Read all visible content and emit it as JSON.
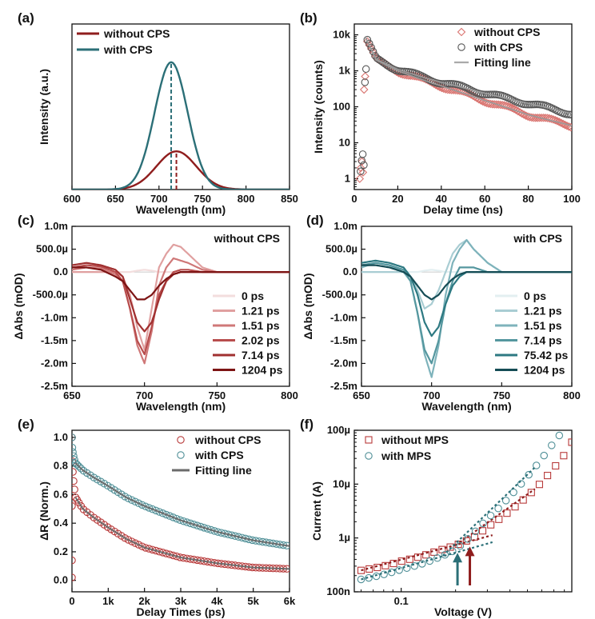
{
  "colors": {
    "red": "#8f1d1d",
    "teal": "#2b6f77",
    "fit": "#6b6b6b",
    "pinkMarker": "#d9736f",
    "tealMarker": "#4f8f97"
  },
  "chart_data": [
    {
      "panel": "(a)",
      "type": "line",
      "xlabel": "Wavelength (nm)",
      "ylabel": "Intensity (a.u.)",
      "xlim": [
        600,
        850
      ],
      "ylim": [
        0,
        1.3
      ],
      "xticks": [
        600,
        650,
        700,
        750,
        800,
        850
      ],
      "yticks": [],
      "legend_position": "top-left",
      "series": [
        {
          "name": "without CPS",
          "color": "#8f1d1d",
          "peak_x": 720,
          "peak_y": 0.3,
          "sigma": 23
        },
        {
          "name": "with CPS",
          "color": "#2b6f77",
          "peak_x": 714,
          "peak_y": 1.0,
          "sigma": 19
        }
      ],
      "annotations": [
        {
          "type": "dashed-vline",
          "x": 714,
          "color": "#2b6f77"
        },
        {
          "type": "dashed-vline",
          "x": 720,
          "color": "#8f1d1d"
        }
      ]
    },
    {
      "panel": "(b)",
      "type": "scatter",
      "xlabel": "Delay time (ns)",
      "ylabel": "Intensity (counts)",
      "xlim": [
        0,
        100
      ],
      "ylim": [
        0.5,
        20000
      ],
      "yscale": "log",
      "xticks": [
        0,
        20,
        40,
        60,
        80,
        100
      ],
      "yticks": [
        {
          "v": 1,
          "label": "1"
        },
        {
          "v": 10,
          "label": "10"
        },
        {
          "v": 100,
          "label": "100"
        },
        {
          "v": 1000,
          "label": "1k"
        },
        {
          "v": 10000,
          "label": "10k"
        }
      ],
      "legend_position": "top-right",
      "series": [
        {
          "name": "without CPS",
          "marker": "diamond",
          "color": "#d9736f",
          "x": [
            5,
            10,
            20,
            30,
            40,
            50,
            60,
            70,
            80,
            90,
            100
          ],
          "y": [
            9000,
            2000,
            1000,
            600,
            380,
            240,
            150,
            95,
            60,
            42,
            30
          ]
        },
        {
          "name": "with CPS",
          "marker": "circle",
          "color": "#555555",
          "x": [
            5,
            10,
            20,
            30,
            40,
            50,
            60,
            70,
            80,
            90,
            100
          ],
          "y": [
            9000,
            2100,
            1100,
            700,
            480,
            340,
            240,
            170,
            125,
            90,
            65
          ]
        },
        {
          "name": "Fitting line",
          "marker": "line",
          "color": "#aaaaaa"
        }
      ]
    },
    {
      "panel": "(c)",
      "type": "line",
      "note_label": "without CPS",
      "xlabel": "Wavelength (nm)",
      "ylabel": "ΔAbs (mOD)",
      "xlim": [
        650,
        800
      ],
      "ylim": [
        -0.0025,
        0.001
      ],
      "xticks": [
        650,
        700,
        750,
        800
      ],
      "yticks": [
        {
          "v": 0.001,
          "label": "1.0m"
        },
        {
          "v": 0.0005,
          "label": "500.0µ"
        },
        {
          "v": 0,
          "label": "0.0"
        },
        {
          "v": -0.0005,
          "label": "-500.0µ"
        },
        {
          "v": -0.001,
          "label": "-1.0m"
        },
        {
          "v": -0.0015,
          "label": "-1.5m"
        },
        {
          "v": -0.002,
          "label": "-2.0m"
        },
        {
          "v": -0.0025,
          "label": "-2.5m"
        }
      ],
      "legend_position": "bottom-right",
      "x": [
        650,
        660,
        670,
        680,
        685,
        690,
        695,
        700,
        705,
        710,
        715,
        720,
        725,
        730,
        740,
        750,
        770,
        800
      ],
      "series": [
        {
          "name": "0 ps",
          "color": "#f3dede",
          "y": [
            0,
            0,
            0,
            0,
            0,
            0,
            3e-05,
            5e-05,
            3e-05,
            0,
            0,
            0,
            0,
            0,
            0,
            0,
            0,
            0
          ]
        },
        {
          "name": "1.21 ps",
          "color": "#e0a0a0",
          "y": [
            0,
            0,
            0,
            0,
            -0.0001,
            -0.0005,
            -0.0012,
            -0.0017,
            -0.0008,
            0.0001,
            0.0004,
            0.0006,
            0.00055,
            0.0004,
            0.0001,
            0,
            0,
            0
          ]
        },
        {
          "name": "1.51 ps",
          "color": "#cf7878",
          "y": [
            5e-05,
            0.0001,
            8e-05,
            -5e-05,
            -0.0002,
            -0.0008,
            -0.0016,
            -0.002,
            -0.0013,
            -0.0003,
            0.0001,
            0.0003,
            0.00025,
            0.0002,
            5e-05,
            0,
            0,
            0
          ]
        },
        {
          "name": "2.02 ps",
          "color": "#b84d4d",
          "y": [
            0.0001,
            0.00015,
            0.00012,
            0,
            -0.0002,
            -0.0008,
            -0.0015,
            -0.0018,
            -0.0012,
            -0.0005,
            -0.0002,
            0,
            5e-05,
            5e-05,
            0,
            0,
            0,
            0
          ]
        },
        {
          "name": "7.14 ps",
          "color": "#a03030",
          "y": [
            0.00015,
            0.0002,
            0.00015,
            5e-05,
            -0.0001,
            -0.0006,
            -0.0011,
            -0.0013,
            -0.0011,
            -0.0006,
            -0.0002,
            -5e-05,
            0,
            0,
            0,
            0,
            0,
            0
          ]
        },
        {
          "name": "1204 ps",
          "color": "#7d1414",
          "y": [
            0.0001,
            0.0001,
            5e-05,
            -0.0001,
            -0.0002,
            -0.0004,
            -0.0006,
            -0.0006,
            -0.0005,
            -0.0003,
            -0.00015,
            -5e-05,
            0,
            0,
            0,
            0,
            0,
            0
          ]
        }
      ]
    },
    {
      "panel": "(d)",
      "type": "line",
      "note_label": "with CPS",
      "xlabel": "Wavelength (nm)",
      "ylabel": "ΔAbs (mOD)",
      "xlim": [
        650,
        800
      ],
      "ylim": [
        -0.0025,
        0.001
      ],
      "xticks": [
        650,
        700,
        750,
        800
      ],
      "yticks": [
        {
          "v": 0.001,
          "label": "1.0m"
        },
        {
          "v": 0.0005,
          "label": "500.0µ"
        },
        {
          "v": 0,
          "label": "0.0"
        },
        {
          "v": -0.0005,
          "label": "-500.0µ"
        },
        {
          "v": -0.001,
          "label": "-1.0m"
        },
        {
          "v": -0.0015,
          "label": "-1.5m"
        },
        {
          "v": -0.002,
          "label": "-2.0m"
        },
        {
          "v": -0.0025,
          "label": "-2.5m"
        }
      ],
      "legend_position": "bottom-right",
      "x": [
        650,
        660,
        670,
        680,
        685,
        690,
        695,
        700,
        705,
        710,
        715,
        720,
        725,
        730,
        740,
        750,
        770,
        800
      ],
      "series": [
        {
          "name": "0 ps",
          "color": "#e3eff1",
          "y": [
            0,
            0,
            0,
            0,
            0,
            0,
            3e-05,
            5e-05,
            3e-05,
            0,
            0,
            0,
            0,
            0,
            0,
            0,
            0,
            0
          ]
        },
        {
          "name": "1.21 ps",
          "color": "#a9cdd3",
          "y": [
            0,
            0,
            0,
            0,
            -0.0001,
            -0.0004,
            -0.0008,
            -0.0007,
            -0.0004,
            0,
            0.0004,
            0.0006,
            0.0007,
            0.0005,
            0.0002,
            0,
            0,
            0
          ]
        },
        {
          "name": "1.51 ps",
          "color": "#7eb3bb",
          "y": [
            0.0001,
            0.0002,
            0.00015,
            0,
            -0.0002,
            -0.0009,
            -0.0018,
            -0.0023,
            -0.0016,
            -0.0005,
            0.0002,
            0.0005,
            0.0007,
            0.0005,
            0.0002,
            0,
            0,
            0
          ]
        },
        {
          "name": "7.14 ps",
          "color": "#55979f",
          "y": [
            0.00015,
            0.0002,
            0.00015,
            5e-05,
            -0.0002,
            -0.0009,
            -0.0017,
            -0.002,
            -0.0015,
            -0.0007,
            -0.0002,
            0.0001,
            0.0001,
            0.0001,
            0,
            0,
            0,
            0
          ]
        },
        {
          "name": "75.42 ps",
          "color": "#2d7982",
          "y": [
            0.0002,
            0.00025,
            0.0002,
            0.0001,
            -0.0001,
            -0.0005,
            -0.0011,
            -0.0014,
            -0.0012,
            -0.0007,
            -0.0003,
            -0.0001,
            0,
            0,
            0,
            0,
            0,
            0
          ]
        },
        {
          "name": "1204 ps",
          "color": "#154c55",
          "y": [
            0.00015,
            0.00015,
            0.0001,
            0,
            -0.0001,
            -0.0003,
            -0.0005,
            -0.0006,
            -0.0005,
            -0.0003,
            -0.00015,
            -5e-05,
            0,
            0,
            0,
            0,
            0,
            0
          ]
        }
      ]
    },
    {
      "panel": "(e)",
      "type": "scatter",
      "xlabel": "Delay Times (ps)",
      "ylabel": "ΔR (Norm.)",
      "xlim": [
        0,
        6000
      ],
      "ylim": [
        -0.08,
        1.05
      ],
      "xticks": [
        {
          "v": 0,
          "label": "0"
        },
        {
          "v": 1000,
          "label": "1k"
        },
        {
          "v": 2000,
          "label": "2k"
        },
        {
          "v": 3000,
          "label": "3k"
        },
        {
          "v": 4000,
          "label": "4k"
        },
        {
          "v": 5000,
          "label": "5k"
        },
        {
          "v": 6000,
          "label": "6k"
        }
      ],
      "yticks": [
        {
          "v": 0,
          "label": "0.0"
        },
        {
          "v": 0.2,
          "label": "0.2"
        },
        {
          "v": 0.4,
          "label": "0.4"
        },
        {
          "v": 0.6,
          "label": "0.6"
        },
        {
          "v": 0.8,
          "label": "0.8"
        },
        {
          "v": 1.0,
          "label": "1.0"
        }
      ],
      "legend_position": "top-right",
      "series": [
        {
          "name": "without CPS",
          "marker": "circle",
          "color": "#b83a3a",
          "x": [
            0,
            100,
            300,
            600,
            1000,
            1500,
            2000,
            3000,
            4000,
            5000,
            6000
          ],
          "y": [
            1.0,
            0.58,
            0.5,
            0.44,
            0.37,
            0.29,
            0.23,
            0.16,
            0.12,
            0.09,
            0.08
          ]
        },
        {
          "name": "with CPS",
          "marker": "circle",
          "color": "#4f8f97",
          "x": [
            0,
            100,
            300,
            600,
            1000,
            1500,
            2000,
            3000,
            4000,
            5000,
            6000
          ],
          "y": [
            1.0,
            0.82,
            0.77,
            0.72,
            0.66,
            0.58,
            0.52,
            0.42,
            0.34,
            0.28,
            0.24
          ]
        },
        {
          "name": "Fitting line",
          "marker": "line",
          "color": "#6b6b6b"
        }
      ]
    },
    {
      "panel": "(f)",
      "type": "scatter",
      "xlabel": "Voltage (V)",
      "ylabel": "Current (A)",
      "xscale": "log",
      "yscale": "log",
      "xlim": [
        0.055,
        0.88
      ],
      "ylim": [
        1e-07,
        0.0001
      ],
      "xticks": [
        {
          "v": 0.1,
          "label": "0.1"
        }
      ],
      "yticks": [
        {
          "v": 1e-07,
          "label": "100n"
        },
        {
          "v": 1e-06,
          "label": "1µ"
        },
        {
          "v": 1e-05,
          "label": "10µ"
        },
        {
          "v": 0.0001,
          "label": "100µ"
        }
      ],
      "legend_position": "top-left",
      "series": [
        {
          "name": "without MPS",
          "marker": "square",
          "color": "#b83a3a",
          "x": [
            0.06,
            0.08,
            0.1,
            0.13,
            0.16,
            0.2,
            0.25,
            0.3,
            0.4,
            0.5,
            0.6,
            0.7,
            0.8,
            0.88
          ],
          "y": [
            2.5e-07,
            3e-07,
            3.7e-07,
            4.6e-07,
            5.8e-07,
            7.3e-07,
            1e-06,
            1.6e-06,
            3.2e-06,
            6e-06,
            1.1e-05,
            2e-05,
            3.5e-05,
            6e-05
          ]
        },
        {
          "name": "with MPS",
          "marker": "circle",
          "color": "#4f8f97",
          "x": [
            0.06,
            0.08,
            0.1,
            0.13,
            0.16,
            0.2,
            0.25,
            0.3,
            0.4,
            0.5,
            0.6,
            0.7,
            0.75
          ],
          "y": [
            1.7e-07,
            2.1e-07,
            2.6e-07,
            3.3e-07,
            4.3e-07,
            6e-07,
            1.2e-06,
            2.3e-06,
            6e-06,
            1.4e-05,
            3e-05,
            6e-05,
            8e-05
          ]
        }
      ],
      "annotations": [
        {
          "type": "arrow",
          "x": 0.205,
          "color": "#2b6f77"
        },
        {
          "type": "arrow",
          "x": 0.24,
          "color": "#8f1d1d"
        }
      ]
    }
  ]
}
